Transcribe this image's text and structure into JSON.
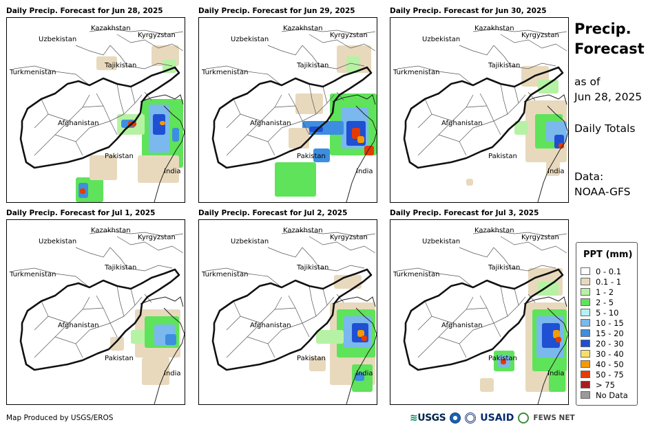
{
  "panels": [
    {
      "title": "Daily Precip. Forecast for Jun 28, 2025",
      "intensity": "high-east"
    },
    {
      "title": "Daily Precip. Forecast for Jun 29, 2025",
      "intensity": "high-kashmir"
    },
    {
      "title": "Daily Precip. Forecast for Jun 30, 2025",
      "intensity": "moderate"
    },
    {
      "title": "Daily Precip. Forecast for Jul 1, 2025",
      "intensity": "light"
    },
    {
      "title": "Daily Precip. Forecast for Jul 2, 2025",
      "intensity": "moderate-east"
    },
    {
      "title": "Daily Precip. Forecast for Jul 3, 2025",
      "intensity": "moderate-east-pk"
    }
  ],
  "map_labels": {
    "kazakhstan": "Kazakhstan",
    "uzbekistan": "Uzbekistan",
    "kyrgyzstan": "Kyrgyzstan",
    "tajikistan": "Tajikistan",
    "turkmenistan": "Turkmenistan",
    "afghanistan": "Afghanistan",
    "pakistan": "Pakistan",
    "india": "India"
  },
  "side": {
    "title_line1": "Precip.",
    "title_line2": "Forecast",
    "asof_line1": "as of",
    "asof_line2": "Jun 28, 2025",
    "totals": "Daily Totals",
    "data_line1": "Data:",
    "data_line2": "NOAA-GFS"
  },
  "legend": {
    "title": "PPT (mm)",
    "items": [
      {
        "label": "0 - 0.1",
        "color": "#ffffff"
      },
      {
        "label": "0.1 - 1",
        "color": "#e8d9bd"
      },
      {
        "label": "1 - 2",
        "color": "#b6f2a4"
      },
      {
        "label": "2 - 5",
        "color": "#5fe35a"
      },
      {
        "label": "5 - 10",
        "color": "#b4f2f2"
      },
      {
        "label": "10 - 15",
        "color": "#7ab8ee"
      },
      {
        "label": "15 - 20",
        "color": "#3d8ee0"
      },
      {
        "label": "20 - 30",
        "color": "#1f4fd2"
      },
      {
        "label": "30 - 40",
        "color": "#f6e06a"
      },
      {
        "label": "40 - 50",
        "color": "#f59a00"
      },
      {
        "label": "50 - 75",
        "color": "#e63a00"
      },
      {
        "label": "> 75",
        "color": "#a81e1e"
      },
      {
        "label": "No Data",
        "color": "#9a9a9a"
      }
    ]
  },
  "footer": {
    "credit": "Map Produced by USGS/EROS",
    "logo_usgs": "USGS",
    "logo_usaid": "USAID",
    "logo_fews": "FEWS NET"
  }
}
